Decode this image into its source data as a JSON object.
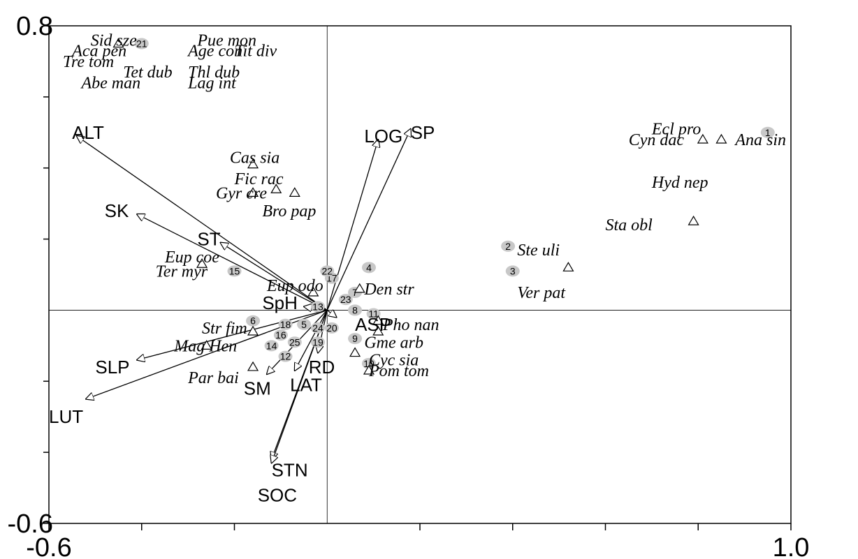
{
  "chart_data": {
    "type": "scatter",
    "subtype": "ordination-biplot",
    "xlim": [
      -0.6,
      1.0
    ],
    "ylim": [
      -0.6,
      0.8
    ],
    "x_tick_labels": [
      {
        "value": -0.6,
        "label": "-0.6"
      },
      {
        "value": 1.0,
        "label": "1.0"
      }
    ],
    "y_tick_labels": [
      {
        "value": 0.8,
        "label": "0.8"
      },
      {
        "value": -0.6,
        "label": "-0.6"
      }
    ],
    "x_minor_ticks": [
      -0.4,
      -0.2,
      0.2,
      0.4,
      0.6,
      0.8
    ],
    "y_minor_ticks": [
      0.6,
      0.4,
      0.2,
      -0.2,
      -0.4
    ],
    "zero_lines": true,
    "colors": {
      "site_marker": "#c8c8c8",
      "arrow": "#000000",
      "axis": "#000000"
    },
    "env_vectors": [
      {
        "name": "ALT",
        "x": -0.54,
        "y": 0.49,
        "label_x": -0.55,
        "label_y": 0.5
      },
      {
        "name": "SK",
        "x": -0.41,
        "y": 0.27,
        "label_x": -0.48,
        "label_y": 0.28
      },
      {
        "name": "ST",
        "x": -0.23,
        "y": 0.19,
        "label_x": -0.28,
        "label_y": 0.2
      },
      {
        "name": "SpH",
        "x": -0.05,
        "y": 0.01,
        "label_x": -0.14,
        "label_y": 0.02
      },
      {
        "name": "LOG",
        "x": 0.11,
        "y": 0.48,
        "label_x": 0.08,
        "label_y": 0.49
      },
      {
        "name": "SP",
        "x": 0.18,
        "y": 0.51,
        "label_x": 0.18,
        "label_y": 0.5
      },
      {
        "name": "SLP",
        "x": -0.41,
        "y": -0.14,
        "label_x": -0.5,
        "label_y": -0.16
      },
      {
        "name": "LUT",
        "x": -0.52,
        "y": -0.25,
        "label_x": -0.6,
        "label_y": -0.3
      },
      {
        "name": "SM",
        "x": -0.13,
        "y": -0.18,
        "label_x": -0.18,
        "label_y": -0.22
      },
      {
        "name": "LAT",
        "x": -0.07,
        "y": -0.17,
        "label_x": -0.08,
        "label_y": -0.21
      },
      {
        "name": "RD",
        "x": -0.02,
        "y": -0.12,
        "label_x": -0.04,
        "label_y": -0.16
      },
      {
        "name": "ASP",
        "x": 0.02,
        "y": -0.02,
        "label_x": 0.06,
        "label_y": -0.04
      },
      {
        "name": "STN",
        "x": -0.12,
        "y": -0.42,
        "label_x": -0.12,
        "label_y": -0.45
      },
      {
        "name": "SOC",
        "x": -0.12,
        "y": -0.43,
        "label_x": -0.15,
        "label_y": -0.52
      }
    ],
    "species": [
      {
        "name": "Sid sze",
        "x": -0.45,
        "y": 0.75,
        "label_x": -0.51,
        "label_y": 0.76
      },
      {
        "name": "Aca pen",
        "x": -0.45,
        "y": 0.75,
        "label_x": -0.55,
        "label_y": 0.73
      },
      {
        "name": "Tre tom",
        "x": -0.45,
        "y": 0.75,
        "label_x": -0.57,
        "label_y": 0.7
      },
      {
        "name": "Tet dub",
        "x": -0.45,
        "y": 0.75,
        "label_x": -0.44,
        "label_y": 0.67
      },
      {
        "name": "Abe man",
        "x": -0.45,
        "y": 0.75,
        "label_x": -0.53,
        "label_y": 0.64
      },
      {
        "name": "Pue mon",
        "x": -0.45,
        "y": 0.75,
        "label_x": -0.28,
        "label_y": 0.76
      },
      {
        "name": "Age con",
        "x": -0.45,
        "y": 0.75,
        "label_x": -0.3,
        "label_y": 0.73
      },
      {
        "name": "Tit div",
        "x": -0.45,
        "y": 0.75,
        "label_x": -0.2,
        "label_y": 0.73
      },
      {
        "name": "Thl dub",
        "x": -0.45,
        "y": 0.75,
        "label_x": -0.3,
        "label_y": 0.67
      },
      {
        "name": "Lag int",
        "x": -0.45,
        "y": 0.75,
        "label_x": -0.3,
        "label_y": 0.64
      },
      {
        "name": "Cas sia",
        "x": -0.16,
        "y": 0.41,
        "label_x": -0.21,
        "label_y": 0.43
      },
      {
        "name": "Fic rac",
        "x": -0.11,
        "y": 0.34,
        "label_x": -0.2,
        "label_y": 0.37
      },
      {
        "name": "Gyr cre",
        "x": -0.16,
        "y": 0.33,
        "label_x": -0.24,
        "label_y": 0.33
      },
      {
        "name": "Bro pap",
        "x": -0.07,
        "y": 0.33,
        "label_x": -0.14,
        "label_y": 0.28
      },
      {
        "name": "Eup coe",
        "x": -0.27,
        "y": 0.13,
        "label_x": -0.35,
        "label_y": 0.15
      },
      {
        "name": "Ter myr",
        "x": -0.27,
        "y": 0.13,
        "label_x": -0.37,
        "label_y": 0.11
      },
      {
        "name": "Eup odo",
        "x": -0.03,
        "y": 0.05,
        "label_x": -0.13,
        "label_y": 0.07
      },
      {
        "name": "Den str",
        "x": 0.07,
        "y": 0.06,
        "label_x": 0.08,
        "label_y": 0.06
      },
      {
        "name": "Str fim",
        "x": -0.16,
        "y": -0.06,
        "label_x": -0.27,
        "label_y": -0.05
      },
      {
        "name": "Pho nan",
        "x": 0.11,
        "y": -0.03,
        "label_x": 0.12,
        "label_y": -0.04
      },
      {
        "name": "Mag Hen",
        "x": -0.26,
        "y": -0.1,
        "label_x": -0.33,
        "label_y": -0.1
      },
      {
        "name": "Gme arb",
        "x": 0.11,
        "y": -0.06,
        "label_x": 0.08,
        "label_y": -0.09
      },
      {
        "name": "Cyc sia",
        "x": 0.06,
        "y": -0.12,
        "label_x": 0.09,
        "label_y": -0.14
      },
      {
        "name": "Par bai",
        "x": -0.16,
        "y": -0.16,
        "label_x": -0.3,
        "label_y": -0.19
      },
      {
        "name": "Pom tom",
        "x": 0.09,
        "y": -0.17,
        "label_x": 0.09,
        "label_y": -0.17
      },
      {
        "name": "Ste uli",
        "x": 0.52,
        "y": 0.12,
        "label_x": 0.41,
        "label_y": 0.17
      },
      {
        "name": "Ver pat",
        "x": 0.52,
        "y": 0.12,
        "label_x": 0.41,
        "label_y": 0.05
      },
      {
        "name": "Sta obl",
        "x": 0.79,
        "y": 0.25,
        "label_x": 0.6,
        "label_y": 0.24
      },
      {
        "name": "Ecl pro",
        "x": 0.81,
        "y": 0.48,
        "label_x": 0.7,
        "label_y": 0.51
      },
      {
        "name": "Cyn dac",
        "x": 0.81,
        "y": 0.48,
        "label_x": 0.65,
        "label_y": 0.48
      },
      {
        "name": "Ana sin",
        "x": 0.85,
        "y": 0.48,
        "label_x": 0.88,
        "label_y": 0.48
      },
      {
        "name": "Hyd nep",
        "x": 0.81,
        "y": 0.48,
        "label_x": 0.7,
        "label_y": 0.36
      }
    ],
    "sites": [
      {
        "label": "1",
        "x": 0.95,
        "y": 0.5
      },
      {
        "label": "2",
        "x": 0.39,
        "y": 0.18
      },
      {
        "label": "3",
        "x": 0.4,
        "y": 0.11
      },
      {
        "label": "4",
        "x": 0.09,
        "y": 0.12
      },
      {
        "label": "5",
        "x": -0.05,
        "y": -0.04
      },
      {
        "label": "6",
        "x": -0.16,
        "y": -0.03
      },
      {
        "label": "7",
        "x": 0.06,
        "y": 0.05
      },
      {
        "label": "8",
        "x": 0.06,
        "y": 0.0
      },
      {
        "label": "9",
        "x": 0.06,
        "y": -0.08
      },
      {
        "label": "10",
        "x": 0.09,
        "y": -0.15
      },
      {
        "label": "11",
        "x": 0.1,
        "y": -0.01
      },
      {
        "label": "12",
        "x": -0.09,
        "y": -0.13
      },
      {
        "label": "13",
        "x": -0.02,
        "y": 0.01
      },
      {
        "label": "14",
        "x": -0.12,
        "y": -0.1
      },
      {
        "label": "15",
        "x": -0.2,
        "y": 0.11
      },
      {
        "label": "16",
        "x": -0.1,
        "y": -0.07
      },
      {
        "label": "17",
        "x": 0.01,
        "y": 0.09
      },
      {
        "label": "18",
        "x": -0.09,
        "y": -0.04
      },
      {
        "label": "19",
        "x": -0.02,
        "y": -0.09
      },
      {
        "label": "20",
        "x": 0.01,
        "y": -0.05
      },
      {
        "label": "21",
        "x": -0.4,
        "y": 0.75
      },
      {
        "label": "22",
        "x": 0.0,
        "y": 0.11
      },
      {
        "label": "23",
        "x": 0.04,
        "y": 0.03
      },
      {
        "label": "24",
        "x": -0.02,
        "y": -0.05
      },
      {
        "label": "25",
        "x": -0.07,
        "y": -0.09
      }
    ]
  }
}
